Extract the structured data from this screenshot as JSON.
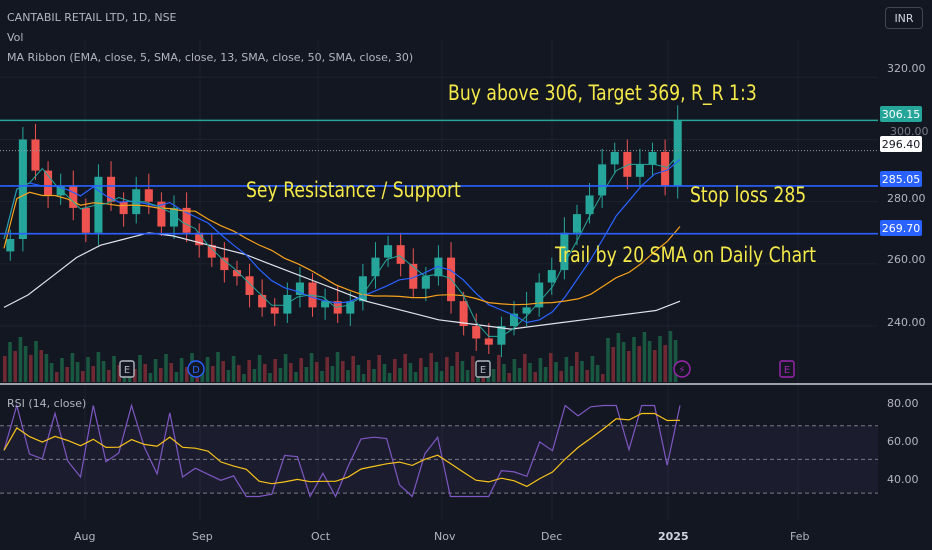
{
  "header": {
    "symbol_line": "CANTABIL RETAIL LTD, 1D, NSE",
    "volume_label": "Vol",
    "ma_ribbon_label": "MA Ribbon (EMA, close, 5, SMA, close, 13, SMA, close, 50, SMA, close, 30)",
    "currency": "INR"
  },
  "annotations": {
    "buy": "Buy above 306, Target 369, R_R 1:3",
    "resistance": "Sey Resistance / Support",
    "stoploss": "Stop loss 285",
    "trail": "Trail by 20 SMA on Daily Chart"
  },
  "event_markers": [
    {
      "kind": "earnings",
      "label": "E",
      "color": "#b2b5be"
    },
    {
      "kind": "dividend",
      "label": "D",
      "color": "#2962ff"
    },
    {
      "kind": "earnings",
      "label": "E",
      "color": "#b2b5be"
    },
    {
      "kind": "split",
      "label": "⚡",
      "color": "#9c27b0"
    },
    {
      "kind": "earnings",
      "label": "E",
      "color": "#9c27b0"
    }
  ],
  "rsi": {
    "label": "RSI (14, close)"
  },
  "chart_data": {
    "type": "candlestick",
    "title": "CANTABIL RETAIL LTD, 1D, NSE",
    "x_labels": [
      "Aug",
      "Sep",
      "Oct",
      "Nov",
      "Dec",
      "2025",
      "Feb"
    ],
    "y_ticks": [
      "320.00",
      "300.00",
      "280.00",
      "260.00",
      "240.00"
    ],
    "rsi_ticks": [
      "80.00",
      "60.00",
      "40.00"
    ],
    "horizontal_levels": [
      {
        "value": 306.15,
        "label": "306.15",
        "color": "#26a69a"
      },
      {
        "value": 285.05,
        "label": "285.05",
        "color": "#2962ff"
      },
      {
        "value": 269.7,
        "label": "269.70",
        "color": "#2962ff"
      }
    ],
    "last_price": {
      "value": 296.4,
      "label": "296.40"
    },
    "ylim": [
      222,
      332
    ],
    "rsi_levels": [
      70,
      50,
      30
    ],
    "series": [
      {
        "name": "Close (approx.)",
        "values": [
          268,
          300,
          290,
          282,
          285,
          278,
          270,
          288,
          280,
          276,
          284,
          280,
          272,
          278,
          270,
          266,
          262,
          258,
          256,
          250,
          246,
          244,
          250,
          254,
          246,
          248,
          244,
          248,
          256,
          262,
          266,
          260,
          252,
          256,
          262,
          248,
          240,
          236,
          234,
          240,
          244,
          246,
          254,
          258,
          270,
          276,
          282,
          292,
          296,
          288,
          292,
          296,
          285,
          306
        ]
      },
      {
        "name": "SMA 50 (approx.)",
        "values": [
          246,
          250,
          256,
          262,
          266,
          268,
          270,
          269,
          267,
          265,
          263,
          260,
          257,
          254,
          251,
          248,
          246,
          244,
          242,
          241,
          240,
          239,
          240,
          241,
          242,
          243,
          244,
          245,
          248
        ]
      }
    ]
  }
}
